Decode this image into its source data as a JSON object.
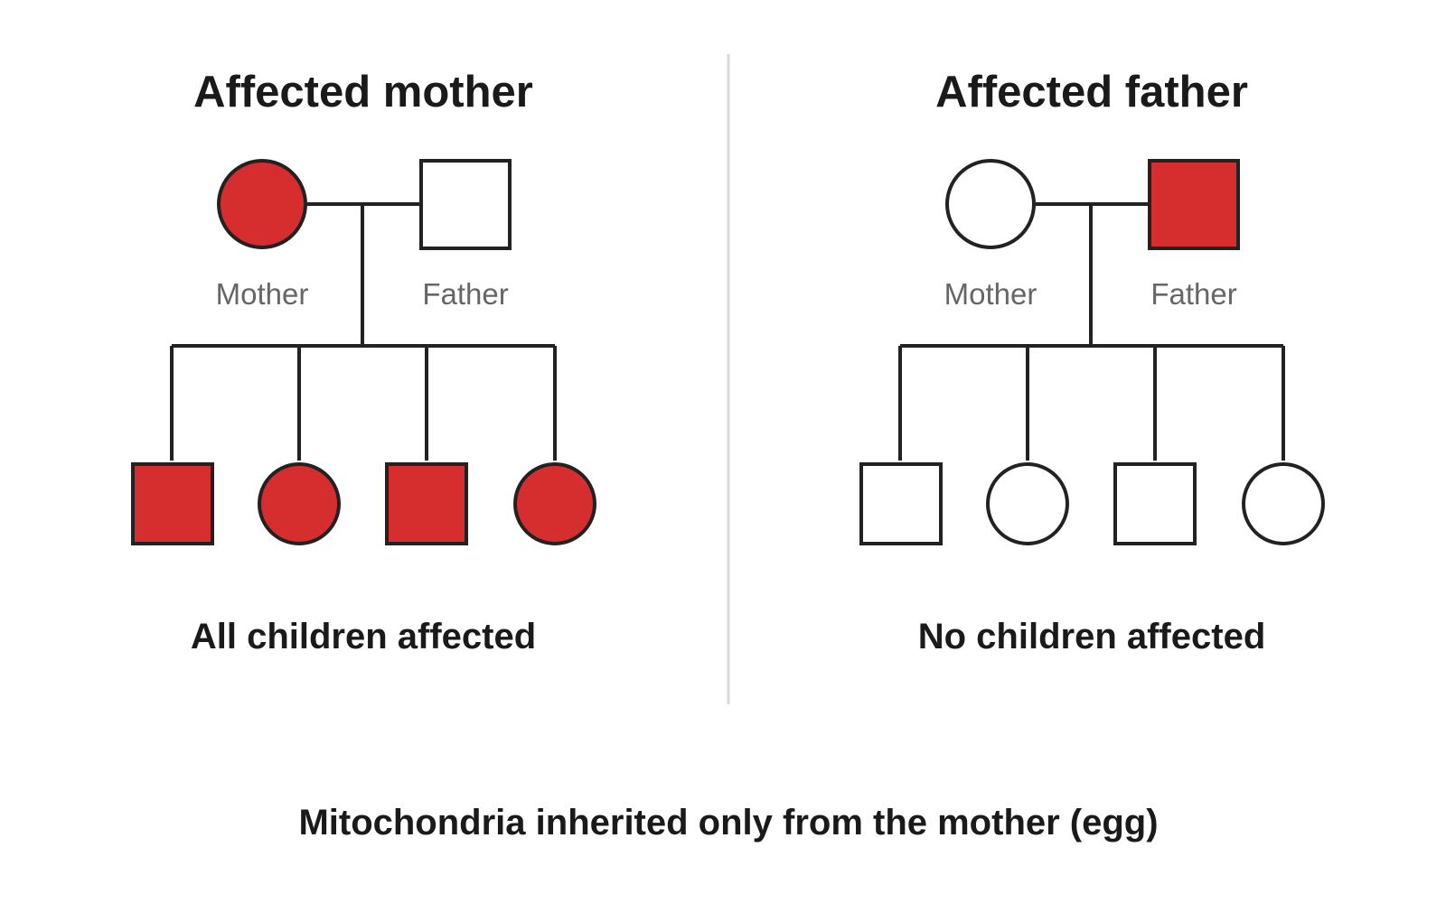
{
  "colors": {
    "affected": "#d62e2e",
    "unaffected": "#ffffff",
    "outline": "#222222",
    "label": "#666666",
    "divider": "#d9d9d9"
  },
  "left_panel": {
    "title": "Affected mother",
    "parents": {
      "mother": {
        "label": "Mother",
        "shape": "circle",
        "affected": true
      },
      "father": {
        "label": "Father",
        "shape": "square",
        "affected": false
      }
    },
    "children": [
      {
        "shape": "square",
        "affected": true
      },
      {
        "shape": "circle",
        "affected": true
      },
      {
        "shape": "square",
        "affected": true
      },
      {
        "shape": "circle",
        "affected": true
      }
    ],
    "outcome": "All children affected"
  },
  "right_panel": {
    "title": "Affected father",
    "parents": {
      "mother": {
        "label": "Mother",
        "shape": "circle",
        "affected": false
      },
      "father": {
        "label": "Father",
        "shape": "square",
        "affected": true
      }
    },
    "children": [
      {
        "shape": "square",
        "affected": false
      },
      {
        "shape": "circle",
        "affected": false
      },
      {
        "shape": "square",
        "affected": false
      },
      {
        "shape": "circle",
        "affected": false
      }
    ],
    "outcome": "No children affected"
  },
  "caption": "Mitochondria inherited only from the mother (egg)"
}
